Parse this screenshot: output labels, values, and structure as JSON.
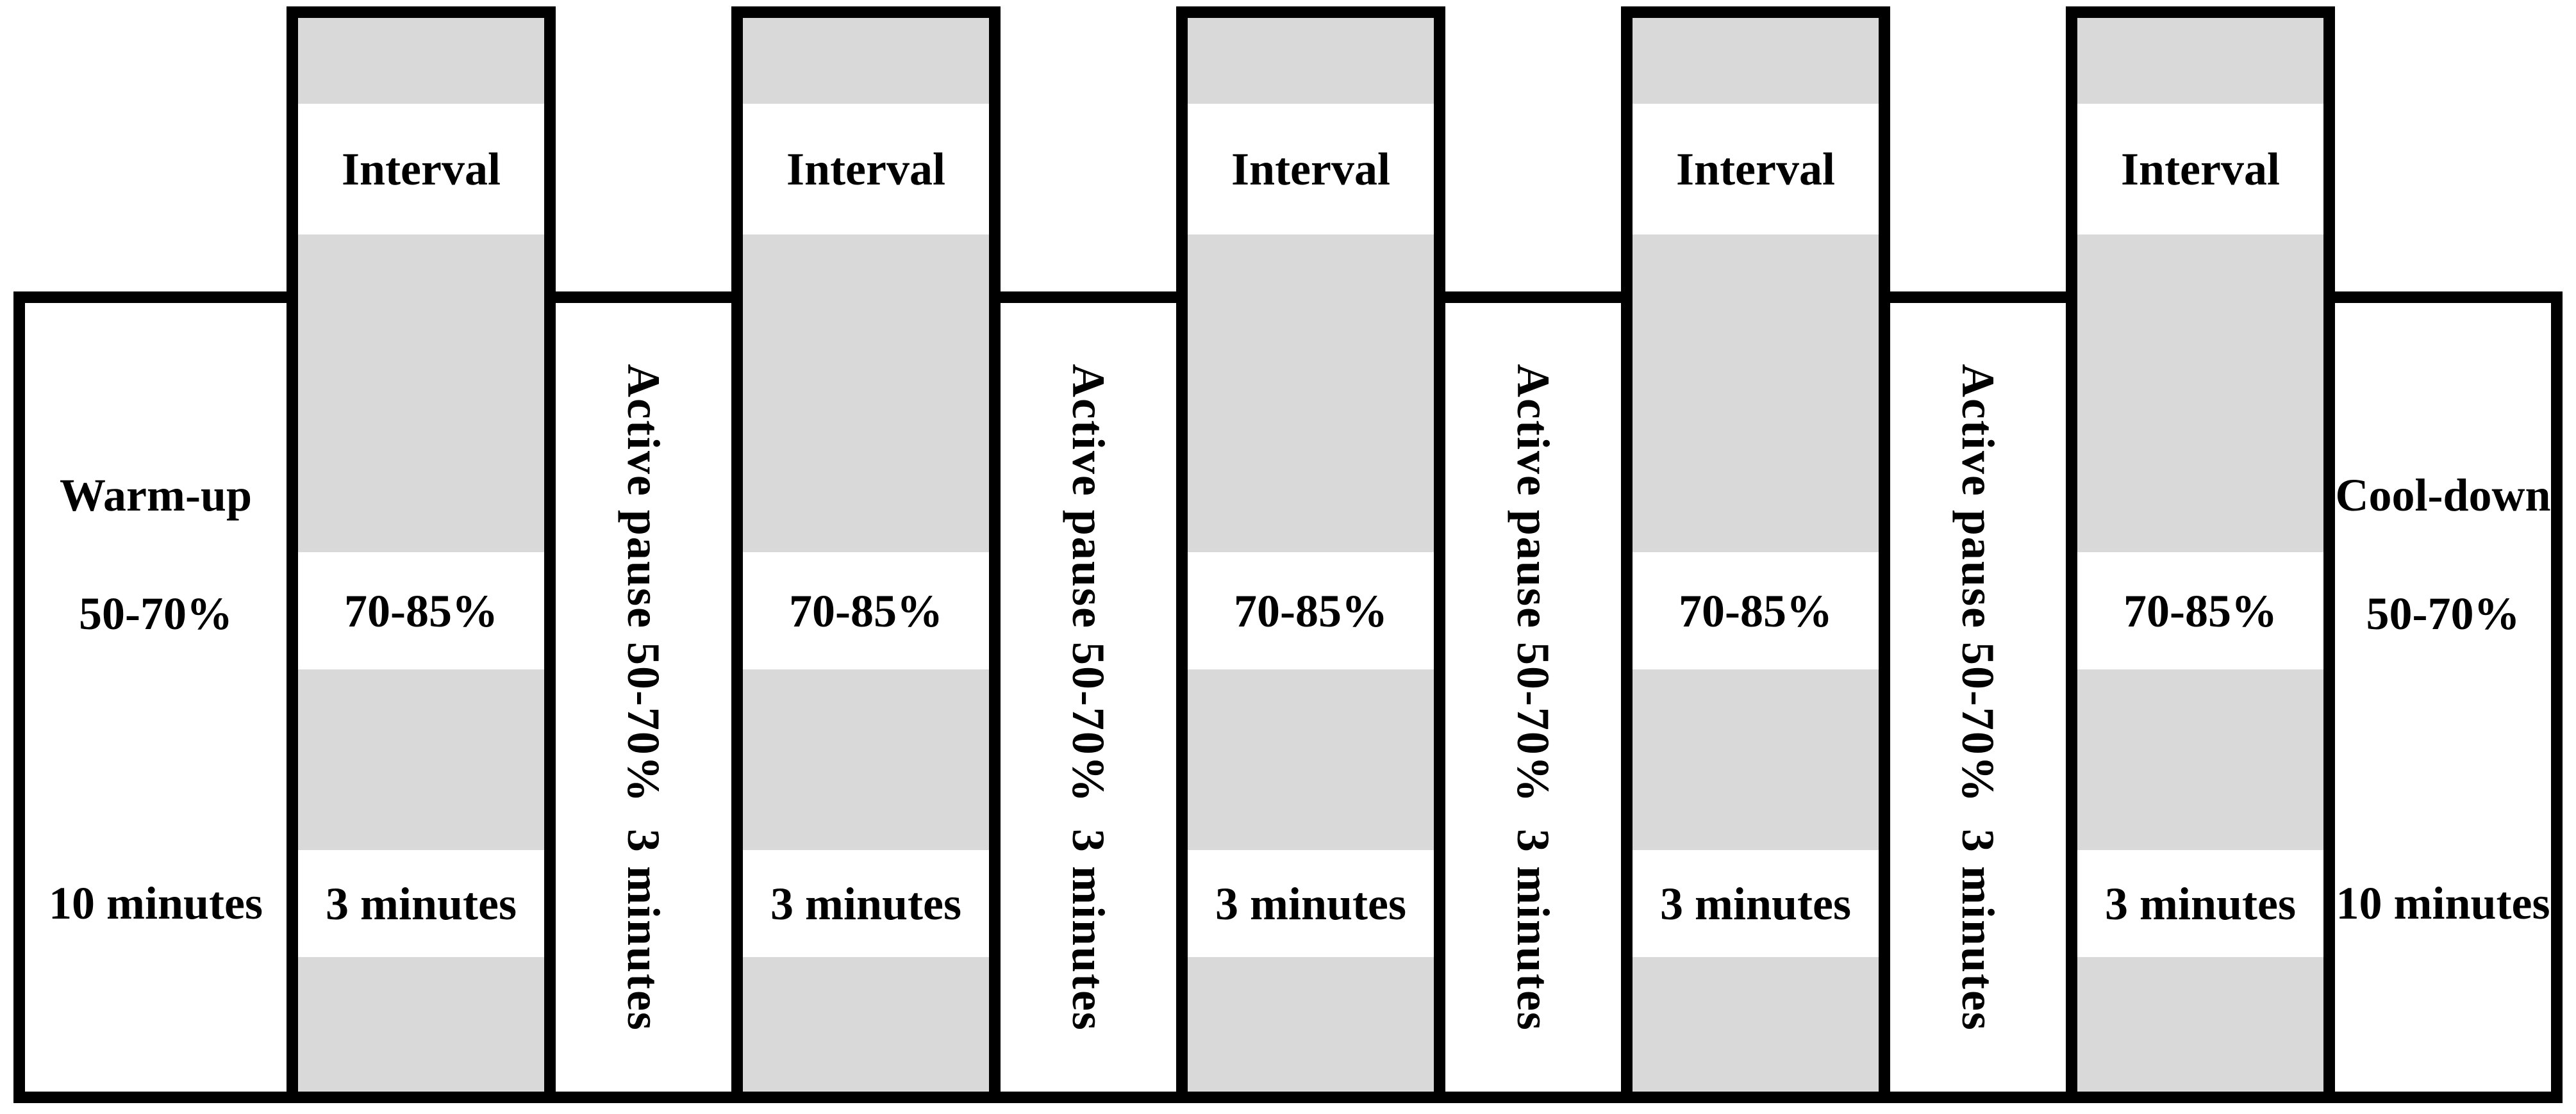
{
  "figure": {
    "description": "Interval training session protocol figure",
    "colors": {
      "band_gray": "#d9d9d9",
      "line_black": "#000000",
      "background_white": "#ffffff"
    },
    "blocks": [
      {
        "kind": "endurance",
        "title": "Warm-up",
        "intensity": "50-70%",
        "duration": "10 minutes"
      },
      {
        "kind": "interval",
        "title": "Interval",
        "intensity": "70-85%",
        "duration": "3 minutes"
      },
      {
        "kind": "pause",
        "label": "Active pause 50-70%  3 minutes"
      },
      {
        "kind": "interval",
        "title": "Interval",
        "intensity": "70-85%",
        "duration": "3 minutes"
      },
      {
        "kind": "pause",
        "label": "Active pause 50-70%  3 minutes"
      },
      {
        "kind": "interval",
        "title": "Interval",
        "intensity": "70-85%",
        "duration": "3 minutes"
      },
      {
        "kind": "pause",
        "label": "Active pause 50-70%  3 minutes"
      },
      {
        "kind": "interval",
        "title": "Interval",
        "intensity": "70-85%",
        "duration": "3 minutes"
      },
      {
        "kind": "pause",
        "label": "Active pause 50-70%  3 minutes"
      },
      {
        "kind": "interval",
        "title": "Interval",
        "intensity": "70-85%",
        "duration": "3 minutes"
      },
      {
        "kind": "endurance",
        "title": "Cool-down",
        "intensity": "50-70%",
        "duration": "10 minutes"
      }
    ]
  }
}
